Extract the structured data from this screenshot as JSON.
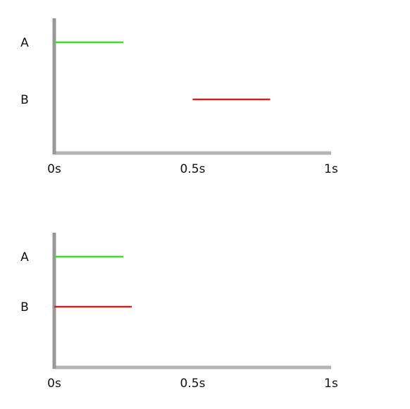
{
  "chart_data": [
    {
      "type": "timeline",
      "rows": [
        {
          "label": "A",
          "start": 0.0,
          "end": 0.25,
          "color": "#3ddc2a"
        },
        {
          "label": "B",
          "start": 0.5,
          "end": 0.78,
          "color": "#cc2222"
        }
      ],
      "ticks": [
        {
          "value": 0.0,
          "label": "0s"
        },
        {
          "value": 0.5,
          "label": "0.5s"
        },
        {
          "value": 1.0,
          "label": "1s"
        }
      ],
      "xlim": [
        0,
        1
      ],
      "axis_colors": {
        "y": "#999999",
        "x": "#b5b5b5"
      }
    },
    {
      "type": "timeline",
      "rows": [
        {
          "label": "A",
          "start": 0.0,
          "end": 0.25,
          "color": "#3ddc2a"
        },
        {
          "label": "B",
          "start": 0.0,
          "end": 0.28,
          "color": "#cc2222"
        }
      ],
      "ticks": [
        {
          "value": 0.0,
          "label": "0s"
        },
        {
          "value": 0.5,
          "label": "0.5s"
        },
        {
          "value": 1.0,
          "label": "1s"
        }
      ],
      "xlim": [
        0,
        1
      ],
      "axis_colors": {
        "y": "#999999",
        "x": "#b5b5b5"
      }
    }
  ]
}
